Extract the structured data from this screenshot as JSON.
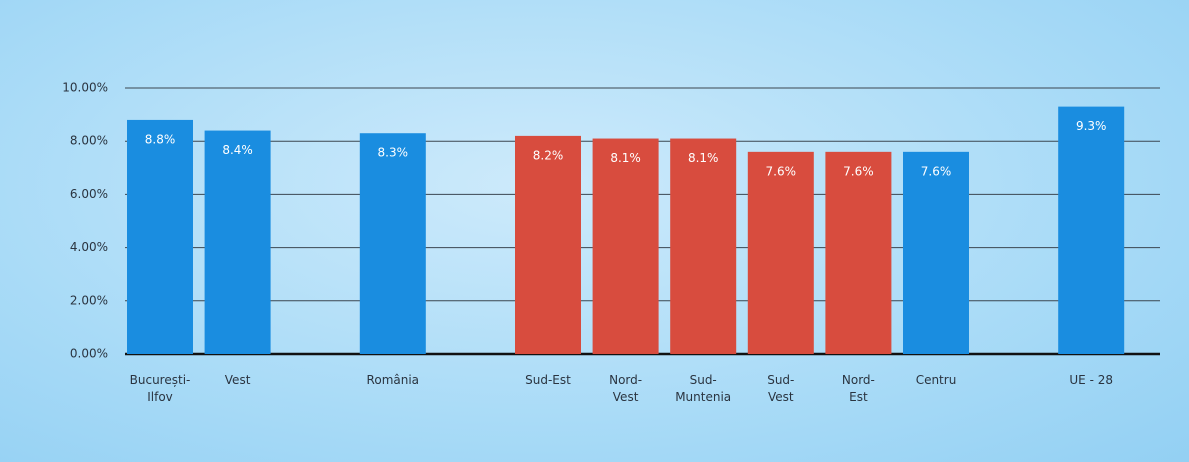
{
  "chart_data": {
    "type": "bar",
    "categories": [
      "București-\nIlfov",
      "Vest",
      null,
      "România",
      null,
      "Sud-Est",
      "Nord-\nVest",
      "Sud-\nMuntenia",
      "Sud-\nVest",
      "Nord-\nEst",
      "Centru",
      null,
      "UE - 28"
    ],
    "values": [
      8.8,
      8.4,
      null,
      8.3,
      null,
      8.2,
      8.1,
      8.1,
      7.6,
      7.6,
      7.6,
      null,
      9.3
    ],
    "value_labels": [
      "8.8%",
      "8.4%",
      null,
      "8.3%",
      null,
      "8.2%",
      "8.1%",
      "8.1%",
      "7.6%",
      "7.6%",
      "7.6%",
      null,
      "9.3%"
    ],
    "colors": [
      "#1a8de0",
      "#1a8de0",
      null,
      "#1a8de0",
      null,
      "#d84c3e",
      "#d84c3e",
      "#d84c3e",
      "#d84c3e",
      "#d84c3e",
      "#1a8de0",
      null,
      "#1a8de0"
    ],
    "ylim": [
      0,
      10
    ],
    "yticks": [
      {
        "value": 0,
        "label": "0.00%"
      },
      {
        "value": 2,
        "label": "2.00%"
      },
      {
        "value": 4,
        "label": "4.00%"
      },
      {
        "value": 6,
        "label": "6.00%"
      },
      {
        "value": 8,
        "label": "8.00%"
      },
      {
        "value": 10,
        "label": "10.00%"
      }
    ],
    "grid": true
  }
}
